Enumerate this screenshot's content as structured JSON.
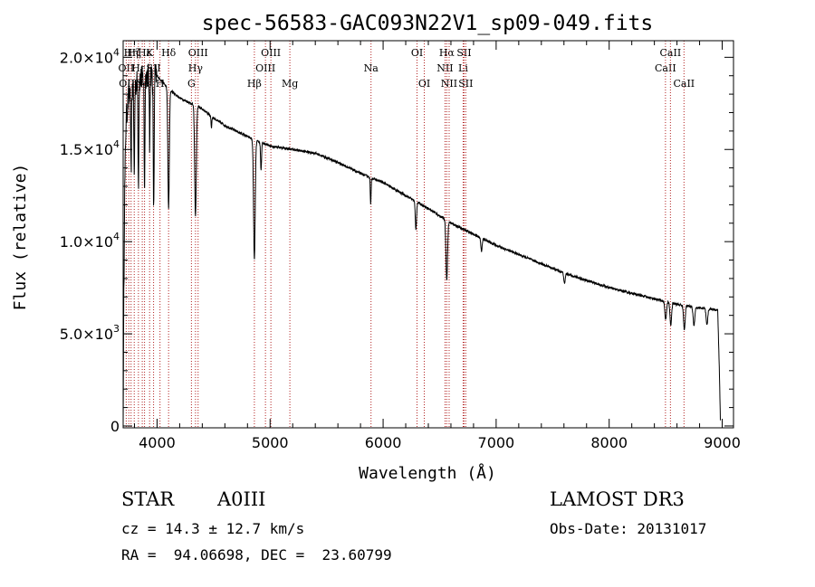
{
  "chart_data": {
    "type": "line",
    "title": "spec-56583-GAC093N22V1_sp09-049.fits",
    "xlabel": "Wavelength (Å)",
    "ylabel": "Flux (relative)",
    "xlim": [
      3700,
      9100
    ],
    "ylim": [
      -100,
      20900
    ],
    "x_ticks": [
      {
        "value": 4000,
        "label": "4000"
      },
      {
        "value": 5000,
        "label": "5000"
      },
      {
        "value": 6000,
        "label": "6000"
      },
      {
        "value": 7000,
        "label": "7000"
      },
      {
        "value": 8000,
        "label": "8000"
      },
      {
        "value": 9000,
        "label": "9000"
      }
    ],
    "y_ticks": [
      {
        "value": 0,
        "mant": "0",
        "exp": ""
      },
      {
        "value": 5000,
        "mant": "5.0×10",
        "exp": "3"
      },
      {
        "value": 10000,
        "mant": "1.0×10",
        "exp": "4"
      },
      {
        "value": 15000,
        "mant": "1.5×10",
        "exp": "4"
      },
      {
        "value": 20000,
        "mant": "2.0×10",
        "exp": "4"
      }
    ],
    "continuum": [
      [
        3700,
        0
      ],
      [
        3705,
        6000
      ],
      [
        3712,
        12000
      ],
      [
        3725,
        16500
      ],
      [
        3750,
        18000
      ],
      [
        3800,
        18500
      ],
      [
        3850,
        18800
      ],
      [
        3900,
        19000
      ],
      [
        3950,
        19100
      ],
      [
        4000,
        19000
      ],
      [
        4100,
        18300
      ],
      [
        4200,
        17800
      ],
      [
        4300,
        17500
      ],
      [
        4400,
        17200
      ],
      [
        4500,
        16700
      ],
      [
        4600,
        16300
      ],
      [
        4700,
        16000
      ],
      [
        4800,
        15700
      ],
      [
        4900,
        15400
      ],
      [
        5000,
        15200
      ],
      [
        5200,
        15000
      ],
      [
        5400,
        14800
      ],
      [
        5600,
        14300
      ],
      [
        5800,
        13700
      ],
      [
        6000,
        13200
      ],
      [
        6200,
        12500
      ],
      [
        6400,
        11800
      ],
      [
        6600,
        11000
      ],
      [
        6800,
        10400
      ],
      [
        7000,
        9800
      ],
      [
        7200,
        9300
      ],
      [
        7400,
        8800
      ],
      [
        7600,
        8300
      ],
      [
        7800,
        7900
      ],
      [
        8000,
        7500
      ],
      [
        8200,
        7200
      ],
      [
        8400,
        6900
      ],
      [
        8600,
        6600
      ],
      [
        8800,
        6400
      ],
      [
        8960,
        6300
      ],
      [
        8975,
        3000
      ],
      [
        8985,
        0
      ]
    ],
    "absorption_features": [
      {
        "center": 3770,
        "depth": 4500,
        "width": 5
      },
      {
        "center": 3798,
        "depth": 5000,
        "width": 5
      },
      {
        "center": 3835,
        "depth": 5500,
        "width": 5
      },
      {
        "center": 3889,
        "depth": 6000,
        "width": 5
      },
      {
        "center": 3934,
        "depth": 4000,
        "width": 4
      },
      {
        "center": 3970,
        "depth": 7500,
        "width": 6
      },
      {
        "center": 4102,
        "depth": 6500,
        "width": 9
      },
      {
        "center": 4340,
        "depth": 6000,
        "width": 10
      },
      {
        "center": 4481,
        "depth": 600,
        "width": 5
      },
      {
        "center": 4861,
        "depth": 6500,
        "width": 10
      },
      {
        "center": 4920,
        "depth": 1500,
        "width": 6
      },
      {
        "center": 5890,
        "depth": 1500,
        "width": 5
      },
      {
        "center": 6290,
        "depth": 1500,
        "width": 8
      },
      {
        "center": 6563,
        "depth": 3200,
        "width": 10
      },
      {
        "center": 6870,
        "depth": 700,
        "width": 8
      },
      {
        "center": 7605,
        "depth": 600,
        "width": 8
      },
      {
        "center": 8500,
        "depth": 1000,
        "width": 10
      },
      {
        "center": 8545,
        "depth": 1200,
        "width": 10
      },
      {
        "center": 8665,
        "depth": 1300,
        "width": 10
      },
      {
        "center": 8750,
        "depth": 1000,
        "width": 10
      },
      {
        "center": 8865,
        "depth": 900,
        "width": 10
      }
    ],
    "line_markers": [
      {
        "wave": 3727,
        "label": "OII",
        "row": 1
      },
      {
        "wave": 3750,
        "label": "OIII",
        "row": 2
      },
      {
        "wave": 3770,
        "label": "Hη",
        "row": 0
      },
      {
        "wave": 3798,
        "label": "Hζ",
        "row": 0
      },
      {
        "wave": 3835,
        "label": "Hε",
        "row": 1
      },
      {
        "wave": 3869,
        "label": "Ne",
        "row": 2
      },
      {
        "wave": 3889,
        "label": "Hε",
        "row": 0
      },
      {
        "wave": 3934,
        "label": "K",
        "row": 0
      },
      {
        "wave": 3969,
        "label": "SII",
        "row": 1
      },
      {
        "wave": 4026,
        "label": "H",
        "row": 2
      },
      {
        "wave": 4102,
        "label": "Hδ",
        "row": 0
      },
      {
        "wave": 4304,
        "label": "G",
        "row": 2
      },
      {
        "wave": 4340,
        "label": "Hγ",
        "row": 1
      },
      {
        "wave": 4363,
        "label": "OIII",
        "row": 0
      },
      {
        "wave": 4861,
        "label": "Hβ",
        "row": 2
      },
      {
        "wave": 4959,
        "label": "OIII",
        "row": 1
      },
      {
        "wave": 5007,
        "label": "OIII",
        "row": 0
      },
      {
        "wave": 5175,
        "label": "Mg",
        "row": 2
      },
      {
        "wave": 5893,
        "label": "Na",
        "row": 1
      },
      {
        "wave": 6300,
        "label": "OI",
        "row": 0
      },
      {
        "wave": 6364,
        "label": "OI",
        "row": 2
      },
      {
        "wave": 6548,
        "label": "NII",
        "row": 1
      },
      {
        "wave": 6563,
        "label": "Hα",
        "row": 0
      },
      {
        "wave": 6584,
        "label": "NII",
        "row": 2
      },
      {
        "wave": 6708,
        "label": "Li",
        "row": 1
      },
      {
        "wave": 6716,
        "label": "SII",
        "row": 0
      },
      {
        "wave": 6731,
        "label": "SII",
        "row": 2
      },
      {
        "wave": 8498,
        "label": "CaII",
        "row": 1
      },
      {
        "wave": 8542,
        "label": "CaII",
        "row": 0
      },
      {
        "wave": 8662,
        "label": "CaII",
        "row": 2
      }
    ]
  },
  "footer": {
    "class_label": "STAR",
    "subclass": "A0III",
    "redshift_text": "cz = 14.3 ± 12.7 km/s",
    "coords_text": "RA =  94.06698, DEC =  23.60799",
    "survey": "LAMOST DR3",
    "obs_date_text": "Obs-Date: 20131017"
  }
}
